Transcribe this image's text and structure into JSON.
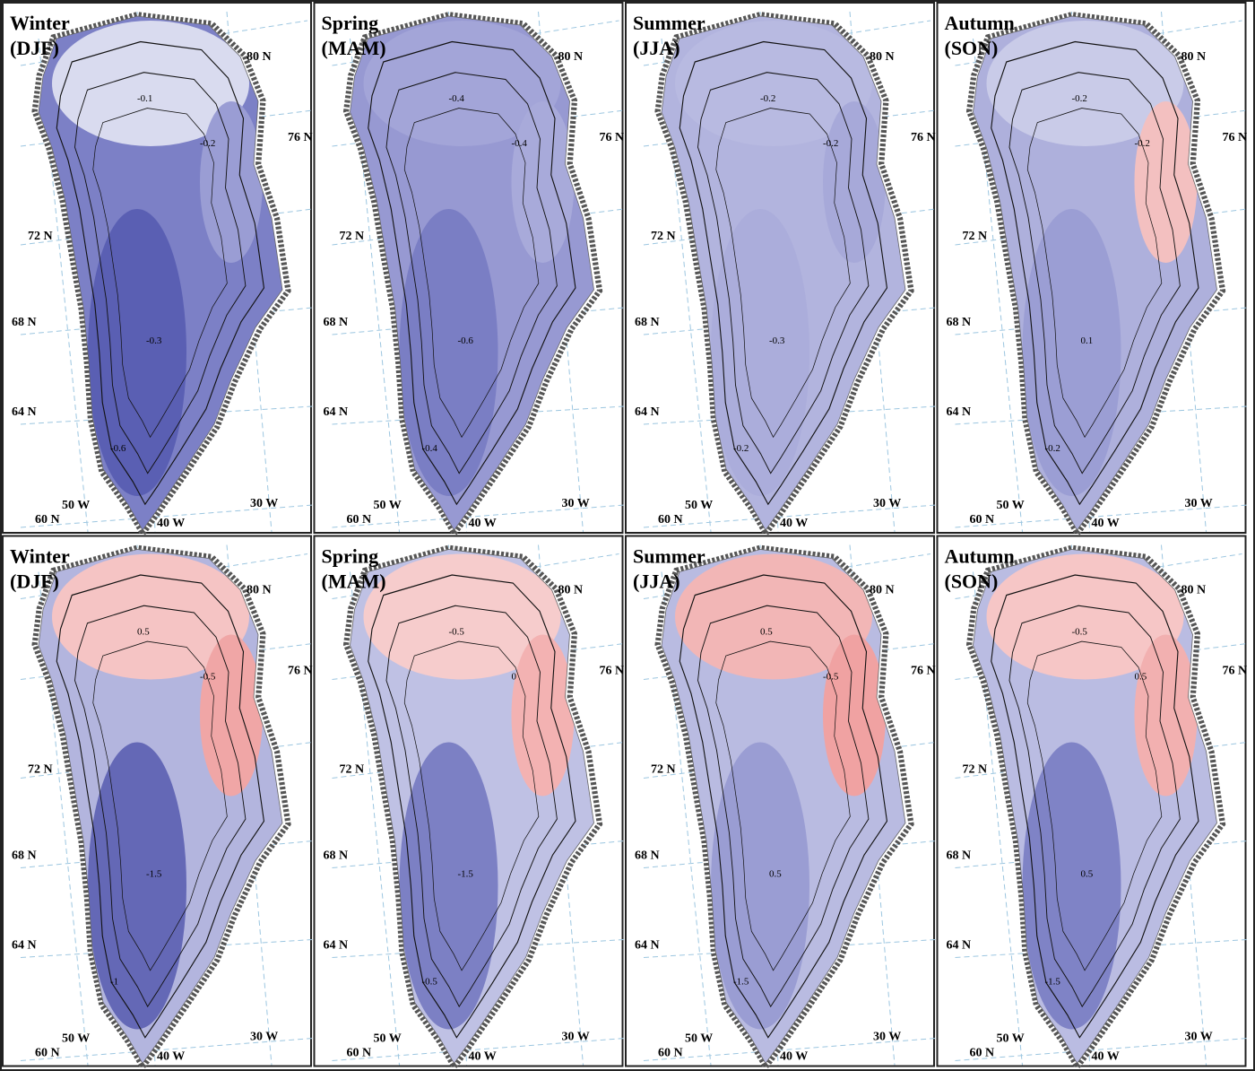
{
  "panels": [
    {
      "season": "Winter",
      "months": "(DJF)",
      "contour_labels": [
        "-0.1",
        "-0.2",
        "-0.3",
        "-0.6"
      ],
      "base": "#7c80c6",
      "north": "#d9dbef",
      "core": "#5a5fb3",
      "east": "#9a9dd4"
    },
    {
      "season": "Spring",
      "months": "(MAM)",
      "contour_labels": [
        "-0.4",
        "-0.4",
        "-0.6",
        "-0.4"
      ],
      "base": "#9799d2",
      "north": "#a3a5d8",
      "core": "#7a7ec4",
      "east": "#a8aada"
    },
    {
      "season": "Summer",
      "months": "(JJA)",
      "contour_labels": [
        "-0.2",
        "-0.2",
        "-0.3",
        "-0.2"
      ],
      "base": "#b2b4de",
      "north": "#b8bae1",
      "core": "#abaddb",
      "east": "#a7a9d9"
    },
    {
      "season": "Autumn",
      "months": "(SON)",
      "contour_labels": [
        "-0.2",
        "-0.2",
        "0.1",
        "-0.2"
      ],
      "base": "#aeb0dc",
      "north": "#c9cbe8",
      "core": "#9b9ed4",
      "east": "#f3c0c0"
    },
    {
      "season": "Winter",
      "months": "(DJF)",
      "contour_labels": [
        "0.5",
        "-0.5",
        "-1.5",
        "-1"
      ],
      "base": "#b3b5de",
      "north": "#f5c4c4",
      "core": "#6468b6",
      "east": "#f0a6a6"
    },
    {
      "season": "Spring",
      "months": "(MAM)",
      "contour_labels": [
        "-0.5",
        "0",
        "-1.5",
        "-0.5"
      ],
      "base": "#bfc1e4",
      "north": "#f6cccc",
      "core": "#7c80c4",
      "east": "#f3b2b2"
    },
    {
      "season": "Summer",
      "months": "(JJA)",
      "contour_labels": [
        "0.5",
        "-0.5",
        "0.5",
        "-1.5"
      ],
      "base": "#b9bbe1",
      "north": "#f2b6b6",
      "core": "#9a9dd3",
      "east": "#f0a2a2"
    },
    {
      "season": "Autumn",
      "months": "(SON)",
      "contour_labels": [
        "-0.5",
        "0.5",
        "0.5",
        "-1.5"
      ],
      "base": "#babce2",
      "north": "#f6c6c6",
      "core": "#7f83c6",
      "east": "#f2b0b0"
    }
  ],
  "lat_labels": [
    "80 N",
    "76 N",
    "72 N",
    "68 N",
    "64 N",
    "60 N"
  ],
  "lon_labels": [
    "50 W",
    "40 W",
    "30 W"
  ]
}
